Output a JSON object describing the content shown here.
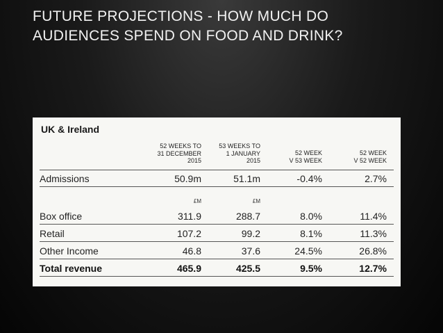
{
  "slide": {
    "title_line1": "FUTURE PROJECTIONS - HOW MUCH DO",
    "title_line2": "AUDIENCES SPEND ON FOOD AND DRINK?"
  },
  "table": {
    "region": "UK & Ireland",
    "headers": [
      {
        "line1": "52 WEEKS TO",
        "line2": "31 DECEMBER",
        "line3": "2015"
      },
      {
        "line1": "53 WEEKS TO",
        "line2": "1 JANUARY",
        "line3": "2015"
      },
      {
        "line1": "52 WEEK",
        "line2": "V 53 WEEK",
        "line3": ""
      },
      {
        "line1": "52 WEEK",
        "line2": "V 52 WEEK",
        "line3": ""
      }
    ],
    "admissions": {
      "label": "Admissions",
      "v1": "50.9m",
      "v2": "51.1m",
      "v3": "-0.4%",
      "v4": "2.7%"
    },
    "units": {
      "u1": "£M",
      "u2": "£M"
    },
    "rows": [
      {
        "label": "Box office",
        "v1": "311.9",
        "v2": "288.7",
        "v3": "8.0%",
        "v4": "11.4%"
      },
      {
        "label": "Retail",
        "v1": "107.2",
        "v2": "99.2",
        "v3": "8.1%",
        "v4": "11.3%"
      },
      {
        "label": "Other Income",
        "v1": "46.8",
        "v2": "37.6",
        "v3": "24.5%",
        "v4": "26.8%"
      }
    ],
    "total": {
      "label": "Total revenue",
      "v1": "465.9",
      "v2": "425.5",
      "v3": "9.5%",
      "v4": "12.7%"
    }
  }
}
